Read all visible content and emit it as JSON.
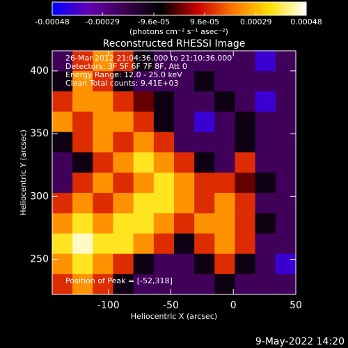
{
  "chart_data": {
    "type": "heatmap",
    "title": "Reconstructed RHESSI Image",
    "xlabel": "Heliocentric X (arcsec)",
    "ylabel": "Heliocentric Y (arcsec)",
    "xlim": [
      -145,
      50
    ],
    "xticks": [
      -100,
      -50,
      0,
      50
    ],
    "ylim": [
      222,
      416
    ],
    "yticks": [
      250,
      300,
      350,
      400
    ],
    "colorbar": {
      "label": "(photons cm⁻² s⁻¹ asec⁻²)",
      "lim": [
        -0.00048,
        0.00048
      ],
      "ticks": [
        -0.00048,
        -0.00029,
        {
          "value": -9.6e-05,
          "label": "-9.6e-05"
        },
        {
          "value": 9.6e-05,
          "label": "9.6e-05"
        },
        0.00029,
        0.00048
      ]
    },
    "colormap": [
      "#0000ff",
      "#6400b4",
      "#3c0050",
      "#000000",
      "#c80000",
      "#ff7800",
      "#ffe000",
      "#ffffff"
    ],
    "annotations": [
      "26-Mar-2012 21:04:36.000 to 21:10:36.000",
      "Detectors: 3F 5F 6F 7F 8F, Att 0",
      "Energy Range: 12.0 - 25.0 keV",
      "Clean     Total counts: 9.41E+03",
      "Position of Peak = [-52,318]"
    ],
    "footer": "9-May-2022 14:20",
    "z": [
      [
        -0.00022,
        0.00012,
        0.00024,
        0.00012,
        -0.0001,
        -0.00022,
        -0.00022,
        -0.00022,
        -0.00022,
        -0.00022,
        -0.0004,
        -0.00022
      ],
      [
        -0.0001,
        0.00024,
        0.00012,
        -0.0001,
        -0.00022,
        -0.00022,
        -0.00022,
        -0.0001,
        -0.00022,
        -0.00022,
        -0.00022,
        -0.00022
      ],
      [
        0.00012,
        0.00024,
        0.00024,
        0.00012,
        0,
        -0.0001,
        -0.00022,
        -0.00022,
        -0.0001,
        -0.00022,
        -0.0004,
        -0.00022
      ],
      [
        0.00024,
        0.00012,
        0.00024,
        0.00024,
        0.00012,
        -0.0001,
        -0.00022,
        -0.0004,
        -0.00022,
        -0.0001,
        -0.00022,
        -0.00022
      ],
      [
        -0.0001,
        0.00012,
        0.00024,
        0.00012,
        0.00024,
        0.00012,
        -0.00022,
        -0.00022,
        -0.00022,
        -0.0001,
        -0.00022,
        -0.00022
      ],
      [
        -0.00022,
        -0.0001,
        0.00012,
        0.00024,
        0.00036,
        0.00024,
        0.00012,
        -0.0001,
        -0.00022,
        0.00012,
        -0.00022,
        -0.00022
      ],
      [
        -0.00022,
        0.00012,
        0.00024,
        0.00012,
        0.00024,
        0.00036,
        0.00024,
        0.00012,
        0.00012,
        0,
        -0.0001,
        -0.00022
      ],
      [
        0.00012,
        0.00024,
        0.00012,
        0.00024,
        0.00036,
        0.00036,
        0.00024,
        0.00012,
        0.00024,
        0.00012,
        -0.00022,
        -0.00022
      ],
      [
        0.00024,
        0.00036,
        0.00024,
        0.00036,
        0.00036,
        0.00024,
        0.00012,
        0.00024,
        0.00024,
        0.00012,
        -0.0001,
        -0.00022
      ],
      [
        0.00036,
        0.00045,
        0.00036,
        0.00036,
        0.00024,
        0.00012,
        -0.0001,
        0.00012,
        0.00024,
        0.00012,
        -0.00022,
        -0.00022
      ],
      [
        0.00024,
        0.00036,
        0.00024,
        0.00012,
        -0.0001,
        -0.00022,
        -0.00022,
        -0.0001,
        0.00012,
        -0.0001,
        -0.00022,
        -0.0004
      ],
      [
        0.00012,
        0.00024,
        0.00012,
        -0.0001,
        -0.00022,
        -0.00022,
        -0.00022,
        -0.00022,
        -0.0001,
        -0.00022,
        -0.00022,
        -0.00022
      ]
    ]
  }
}
